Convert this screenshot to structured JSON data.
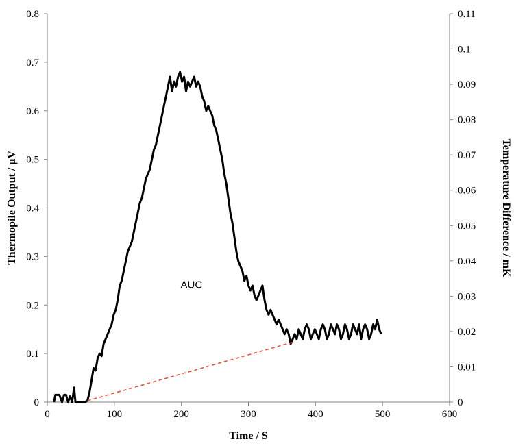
{
  "chart_data": {
    "type": "line",
    "xlabel": "Time / S",
    "ylabel": "Thermopile Output / μV",
    "y2label": "Temperature Difference / mK",
    "xlim": [
      0,
      600
    ],
    "ylim": [
      0,
      0.8
    ],
    "y2lim": [
      0,
      0.11
    ],
    "x_ticks": [
      "0",
      "100",
      "200",
      "300",
      "400",
      "500",
      "600"
    ],
    "y_ticks": [
      "0",
      "0.1",
      "0.2",
      "0.3",
      "0.4",
      "0.5",
      "0.6",
      "0.7",
      "0.8"
    ],
    "y2_ticks": [
      "0",
      "0.01",
      "0.02",
      "0.03",
      "0.04",
      "0.05",
      "0.06",
      "0.07",
      "0.08",
      "0.09",
      "0.1",
      "0.11"
    ],
    "grid": false,
    "annotation": "AUC",
    "series": [
      {
        "color": "#000000",
        "style": "solid",
        "points": [
          [
            10,
            0
          ],
          [
            12,
            0.015
          ],
          [
            18,
            0.015
          ],
          [
            22,
            0
          ],
          [
            25,
            0.015
          ],
          [
            28,
            0.015
          ],
          [
            31,
            0
          ],
          [
            34,
            0.012
          ],
          [
            37,
            0
          ],
          [
            40,
            0.03
          ],
          [
            42,
            0
          ],
          [
            47,
            0
          ],
          [
            52,
            0
          ],
          [
            57,
            0
          ],
          [
            60,
            0.004
          ],
          [
            63,
            0.02
          ],
          [
            66,
            0.045
          ],
          [
            69,
            0.07
          ],
          [
            72,
            0.065
          ],
          [
            75,
            0.09
          ],
          [
            78,
            0.1
          ],
          [
            81,
            0.095
          ],
          [
            84,
            0.12
          ],
          [
            87,
            0.13
          ],
          [
            90,
            0.14
          ],
          [
            93,
            0.15
          ],
          [
            96,
            0.16
          ],
          [
            99,
            0.18
          ],
          [
            102,
            0.19
          ],
          [
            105,
            0.21
          ],
          [
            108,
            0.24
          ],
          [
            111,
            0.25
          ],
          [
            114,
            0.27
          ],
          [
            117,
            0.29
          ],
          [
            120,
            0.31
          ],
          [
            123,
            0.32
          ],
          [
            126,
            0.33
          ],
          [
            129,
            0.35
          ],
          [
            132,
            0.37
          ],
          [
            135,
            0.39
          ],
          [
            138,
            0.41
          ],
          [
            141,
            0.42
          ],
          [
            144,
            0.44
          ],
          [
            147,
            0.46
          ],
          [
            150,
            0.47
          ],
          [
            153,
            0.48
          ],
          [
            156,
            0.5
          ],
          [
            159,
            0.52
          ],
          [
            162,
            0.53
          ],
          [
            165,
            0.55
          ],
          [
            168,
            0.57
          ],
          [
            171,
            0.59
          ],
          [
            174,
            0.61
          ],
          [
            177,
            0.63
          ],
          [
            180,
            0.65
          ],
          [
            183,
            0.67
          ],
          [
            186,
            0.64
          ],
          [
            189,
            0.66
          ],
          [
            192,
            0.65
          ],
          [
            195,
            0.67
          ],
          [
            198,
            0.68
          ],
          [
            201,
            0.66
          ],
          [
            204,
            0.67
          ],
          [
            207,
            0.64
          ],
          [
            210,
            0.66
          ],
          [
            213,
            0.65
          ],
          [
            216,
            0.66
          ],
          [
            219,
            0.67
          ],
          [
            222,
            0.65
          ],
          [
            225,
            0.66
          ],
          [
            228,
            0.65
          ],
          [
            231,
            0.63
          ],
          [
            234,
            0.62
          ],
          [
            237,
            0.6
          ],
          [
            240,
            0.61
          ],
          [
            243,
            0.6
          ],
          [
            246,
            0.59
          ],
          [
            249,
            0.57
          ],
          [
            252,
            0.56
          ],
          [
            255,
            0.54
          ],
          [
            258,
            0.52
          ],
          [
            261,
            0.5
          ],
          [
            264,
            0.47
          ],
          [
            267,
            0.45
          ],
          [
            270,
            0.42
          ],
          [
            273,
            0.39
          ],
          [
            276,
            0.37
          ],
          [
            279,
            0.34
          ],
          [
            282,
            0.31
          ],
          [
            285,
            0.29
          ],
          [
            288,
            0.28
          ],
          [
            291,
            0.27
          ],
          [
            294,
            0.25
          ],
          [
            297,
            0.26
          ],
          [
            300,
            0.24
          ],
          [
            303,
            0.23
          ],
          [
            306,
            0.24
          ],
          [
            309,
            0.22
          ],
          [
            312,
            0.21
          ],
          [
            315,
            0.22
          ],
          [
            318,
            0.23
          ],
          [
            321,
            0.24
          ],
          [
            324,
            0.21
          ],
          [
            327,
            0.19
          ],
          [
            330,
            0.18
          ],
          [
            333,
            0.19
          ],
          [
            336,
            0.18
          ],
          [
            339,
            0.17
          ],
          [
            342,
            0.16
          ],
          [
            345,
            0.17
          ],
          [
            348,
            0.16
          ],
          [
            351,
            0.15
          ],
          [
            354,
            0.14
          ],
          [
            357,
            0.15
          ],
          [
            360,
            0.14
          ],
          [
            363,
            0.12
          ],
          [
            366,
            0.13
          ],
          [
            369,
            0.14
          ],
          [
            372,
            0.13
          ],
          [
            375,
            0.15
          ],
          [
            378,
            0.14
          ],
          [
            381,
            0.13
          ],
          [
            384,
            0.15
          ],
          [
            387,
            0.16
          ],
          [
            390,
            0.15
          ],
          [
            393,
            0.13
          ],
          [
            396,
            0.14
          ],
          [
            399,
            0.15
          ],
          [
            402,
            0.14
          ],
          [
            405,
            0.13
          ],
          [
            408,
            0.15
          ],
          [
            411,
            0.16
          ],
          [
            414,
            0.15
          ],
          [
            417,
            0.13
          ],
          [
            420,
            0.14
          ],
          [
            423,
            0.16
          ],
          [
            426,
            0.15
          ],
          [
            429,
            0.14
          ],
          [
            432,
            0.16
          ],
          [
            435,
            0.15
          ],
          [
            438,
            0.13
          ],
          [
            441,
            0.14
          ],
          [
            444,
            0.16
          ],
          [
            447,
            0.15
          ],
          [
            450,
            0.13
          ],
          [
            453,
            0.14
          ],
          [
            456,
            0.16
          ],
          [
            459,
            0.15
          ],
          [
            462,
            0.14
          ],
          [
            465,
            0.16
          ],
          [
            468,
            0.13
          ],
          [
            471,
            0.15
          ],
          [
            474,
            0.16
          ],
          [
            477,
            0.15
          ],
          [
            480,
            0.13
          ],
          [
            483,
            0.14
          ],
          [
            486,
            0.16
          ],
          [
            489,
            0.15
          ],
          [
            492,
            0.17
          ],
          [
            495,
            0.15
          ],
          [
            498,
            0.14
          ]
        ]
      },
      {
        "color": "#e2533a",
        "style": "dashed",
        "points": [
          [
            60,
            0.003
          ],
          [
            370,
            0.125
          ]
        ]
      }
    ]
  }
}
